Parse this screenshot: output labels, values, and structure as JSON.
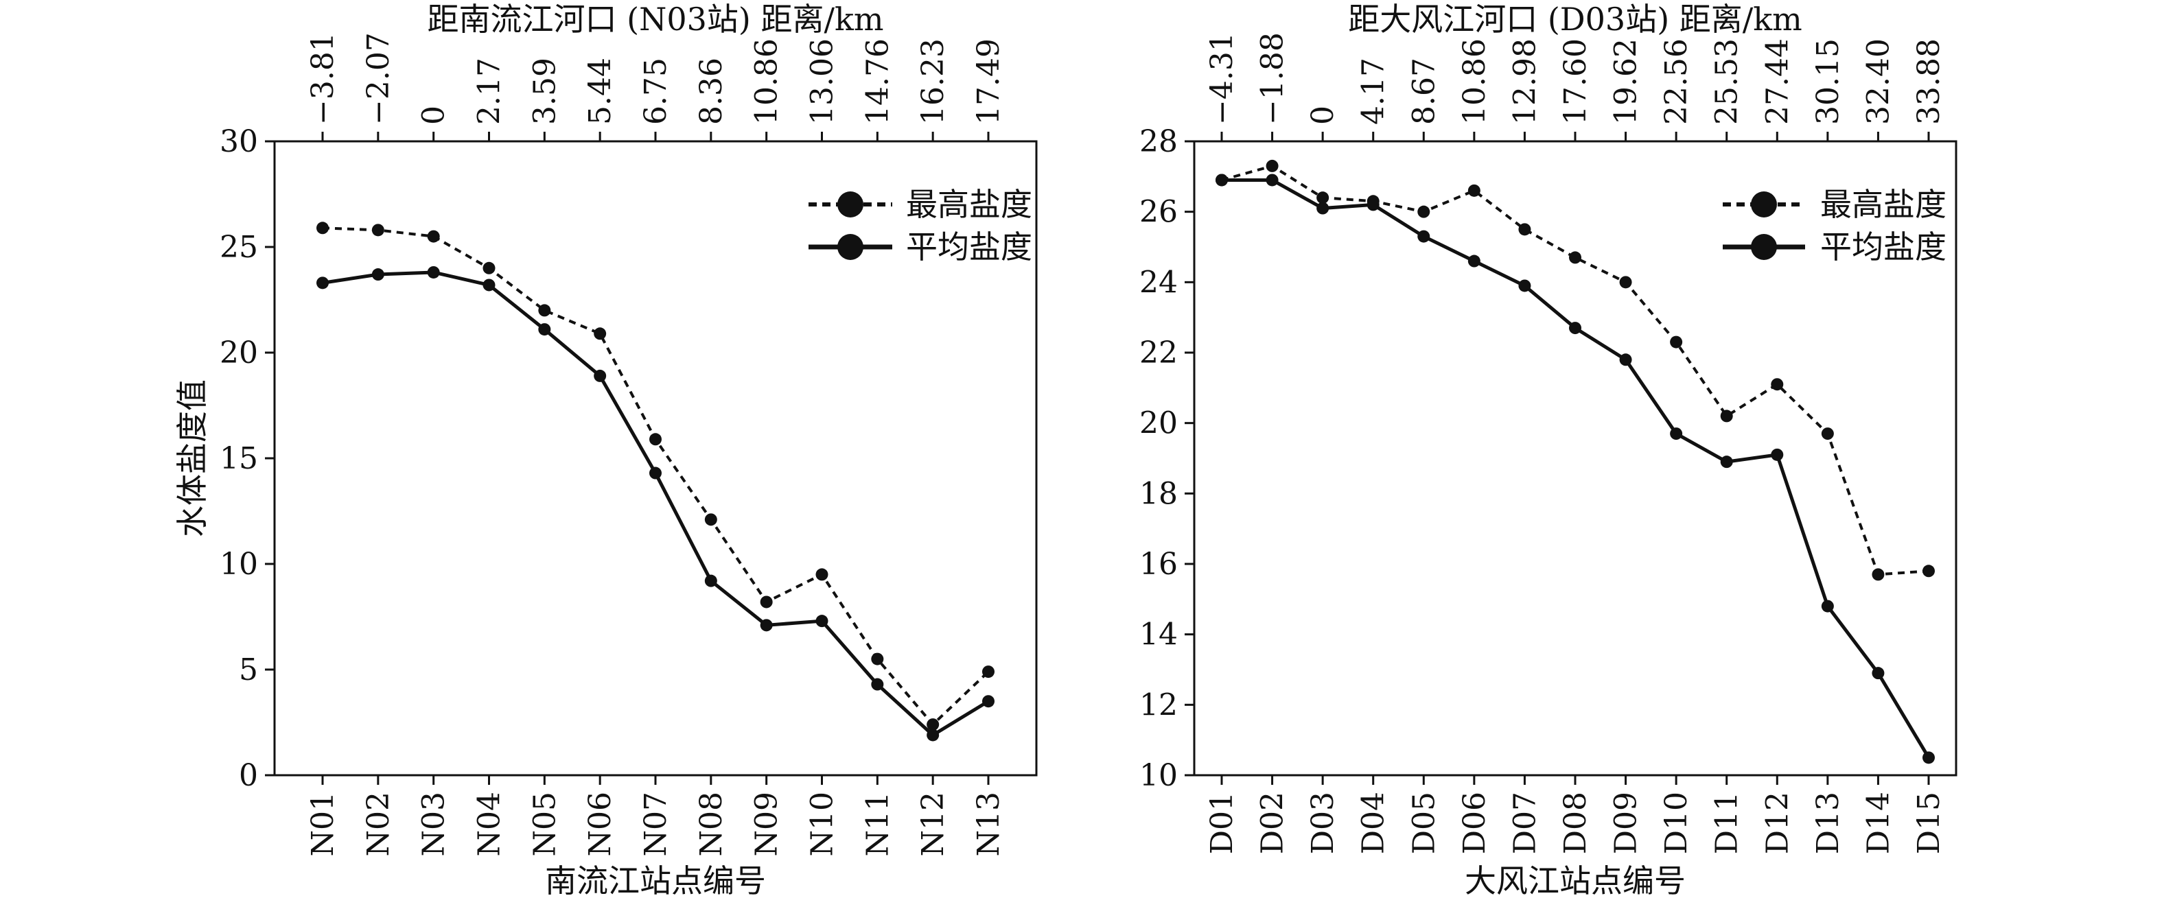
{
  "chart_data": [
    {
      "type": "line",
      "categories": [
        "N01",
        "N02",
        "N03",
        "N04",
        "N05",
        "N06",
        "N07",
        "N08",
        "N09",
        "N10",
        "N11",
        "N12",
        "N13"
      ],
      "top_ticks": [
        "−3.81",
        "−2.07",
        "0",
        "2.17",
        "3.59",
        "5.44",
        "6.75",
        "8.36",
        "10.86",
        "13.06",
        "14.76",
        "16.23",
        "17.49"
      ],
      "top_label": "距南流江河口 (N03站) 距离/km",
      "xlabel": "南流江站点编号",
      "ylabel": "水体盐度值",
      "ylim": [
        0,
        30
      ],
      "yticks": [
        0,
        5,
        10,
        15,
        20,
        25,
        30
      ],
      "legend_position": "top-right",
      "series": [
        {
          "name": "最高盐度",
          "style": "dashed",
          "values": [
            25.9,
            25.8,
            25.5,
            24.0,
            22.0,
            20.9,
            15.9,
            12.1,
            8.2,
            9.5,
            5.5,
            2.4,
            4.9
          ]
        },
        {
          "name": "平均盐度",
          "style": "solid",
          "values": [
            23.3,
            23.7,
            23.8,
            23.2,
            21.1,
            18.9,
            14.3,
            9.2,
            7.1,
            7.3,
            4.3,
            1.9,
            3.5
          ]
        }
      ]
    },
    {
      "type": "line",
      "categories": [
        "D01",
        "D02",
        "D03",
        "D04",
        "D05",
        "D06",
        "D07",
        "D08",
        "D09",
        "D10",
        "D11",
        "D12",
        "D13",
        "D14",
        "D15"
      ],
      "top_ticks": [
        "−4.31",
        "−1.88",
        "0",
        "4.17",
        "8.67",
        "10.86",
        "12.98",
        "17.60",
        "19.62",
        "22.56",
        "25.53",
        "27.44",
        "30.15",
        "32.40",
        "33.88"
      ],
      "top_label": "距大风江河口 (D03站) 距离/km",
      "xlabel": "大风江站点编号",
      "ylabel": "",
      "ylim": [
        10,
        28
      ],
      "yticks": [
        10,
        12,
        14,
        16,
        18,
        20,
        22,
        24,
        26,
        28
      ],
      "legend_position": "top-right",
      "series": [
        {
          "name": "最高盐度",
          "style": "dashed",
          "values": [
            26.9,
            27.3,
            26.4,
            26.3,
            26.0,
            26.6,
            25.5,
            24.7,
            24.0,
            22.3,
            20.2,
            21.1,
            19.7,
            15.7,
            15.8
          ]
        },
        {
          "name": "平均盐度",
          "style": "solid",
          "values": [
            26.9,
            26.9,
            26.1,
            26.2,
            25.3,
            24.6,
            23.9,
            22.7,
            21.8,
            19.7,
            18.9,
            19.1,
            14.8,
            12.9,
            10.5
          ]
        }
      ]
    }
  ]
}
